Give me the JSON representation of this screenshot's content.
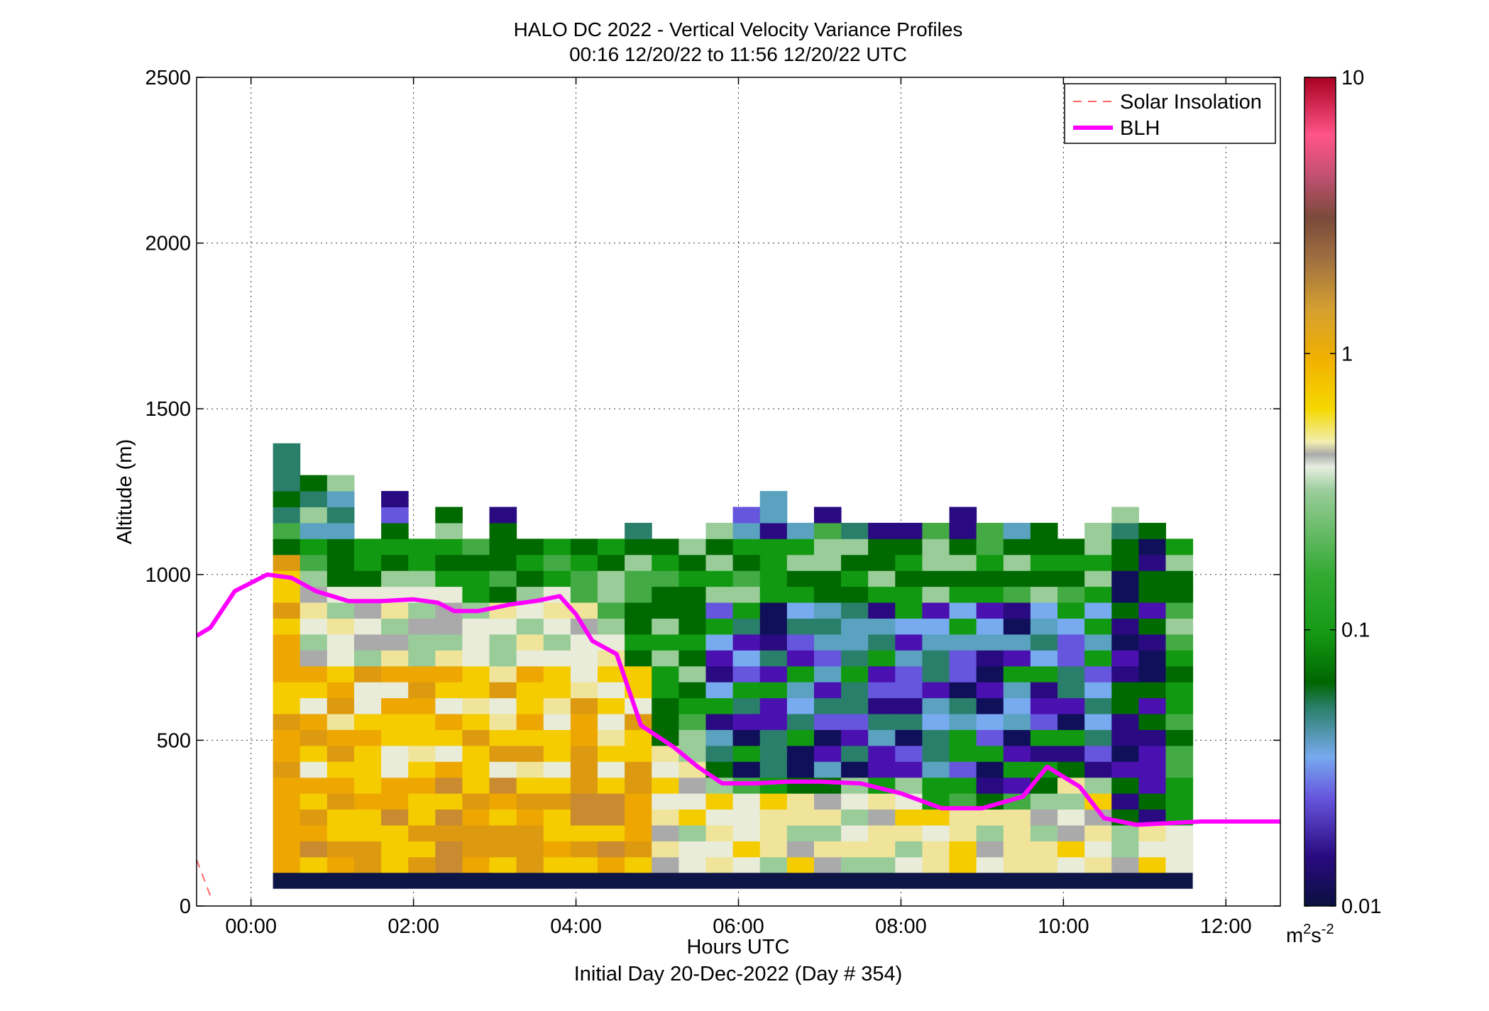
{
  "chart_data": {
    "type": "heatmap",
    "title": "HALO DC 2022 - Vertical Velocity Variance Profiles",
    "subtitle": "00:16 12/20/22 to 11:56 12/20/22  UTC",
    "xlabel": "Hours UTC",
    "xlabel2": "Initial Day 20-Dec-2022 (Day # 354)",
    "ylabel": "Altitude (m)",
    "xlim": [
      -0.67,
      12.67
    ],
    "ylim": [
      0,
      2500
    ],
    "x_ticks": [
      {
        "value": 0,
        "label": "00:00"
      },
      {
        "value": 2,
        "label": "02:00"
      },
      {
        "value": 4,
        "label": "04:00"
      },
      {
        "value": 6,
        "label": "06:00"
      },
      {
        "value": 8,
        "label": "08:00"
      },
      {
        "value": 10,
        "label": "10:00"
      },
      {
        "value": 12,
        "label": "12:00"
      }
    ],
    "y_ticks": [
      {
        "value": 0,
        "label": "0"
      },
      {
        "value": 500,
        "label": "500"
      },
      {
        "value": 1000,
        "label": "1000"
      },
      {
        "value": 1500,
        "label": "1500"
      },
      {
        "value": 2000,
        "label": "2000"
      },
      {
        "value": 2500,
        "label": "2500"
      }
    ],
    "grid": true,
    "legend_position": "top-right",
    "legend": [
      {
        "label": "Solar Insolation",
        "color": "#ff6666",
        "style": "dashed"
      },
      {
        "label": "BLH",
        "color": "#ff00ff",
        "style": "solid"
      }
    ],
    "colorbar": {
      "scale": "log",
      "min": 0.01,
      "max": 10,
      "ticks": [
        {
          "value": 10,
          "label": "10"
        },
        {
          "value": 1,
          "label": "1"
        },
        {
          "value": 0.1,
          "label": "0.1"
        },
        {
          "value": 0.01,
          "label": "0.01"
        }
      ],
      "unit_base": "m",
      "unit_sup1": "2",
      "unit_mid": "s",
      "unit_sup2": "-2"
    },
    "heatmap": {
      "time_start": 0.27,
      "time_step": 0.333,
      "alt_start": 100,
      "alt_step": 48,
      "column_top_alt": [
        1350,
        1300,
        1300,
        1100,
        1250,
        1100,
        1200,
        1100,
        1200,
        1100,
        1100,
        1100,
        1100,
        1150,
        1100,
        1100,
        1150,
        1200,
        1250,
        1150,
        1200,
        1150,
        1150,
        1150,
        1150,
        1200,
        1150,
        1150,
        1150,
        1100,
        1150,
        1200,
        1150,
        1100
      ]
    },
    "series": [
      {
        "name": "BLH",
        "color": "#ff00ff",
        "points": [
          [
            -0.67,
            815
          ],
          [
            -0.5,
            840
          ],
          [
            -0.2,
            950
          ],
          [
            0.2,
            1000
          ],
          [
            0.5,
            990
          ],
          [
            0.8,
            950
          ],
          [
            1.2,
            920
          ],
          [
            1.6,
            920
          ],
          [
            2.0,
            925
          ],
          [
            2.3,
            915
          ],
          [
            2.5,
            890
          ],
          [
            2.8,
            890
          ],
          [
            3.2,
            910
          ],
          [
            3.5,
            920
          ],
          [
            3.8,
            935
          ],
          [
            4.0,
            880
          ],
          [
            4.2,
            800
          ],
          [
            4.5,
            760
          ],
          [
            4.8,
            545
          ],
          [
            5.2,
            480
          ],
          [
            5.5,
            420
          ],
          [
            5.8,
            370
          ],
          [
            6.2,
            370
          ],
          [
            6.6,
            375
          ],
          [
            7.0,
            375
          ],
          [
            7.5,
            370
          ],
          [
            8.0,
            340
          ],
          [
            8.5,
            295
          ],
          [
            9.0,
            295
          ],
          [
            9.5,
            330
          ],
          [
            9.8,
            420
          ],
          [
            10.2,
            360
          ],
          [
            10.5,
            265
          ],
          [
            10.9,
            245
          ],
          [
            11.3,
            250
          ],
          [
            11.7,
            255
          ],
          [
            12.1,
            255
          ],
          [
            12.67,
            255
          ]
        ]
      },
      {
        "name": "Solar Insolation",
        "color": "#ff6666",
        "points": [
          [
            -0.67,
            140
          ],
          [
            -0.5,
            30
          ]
        ]
      }
    ]
  }
}
